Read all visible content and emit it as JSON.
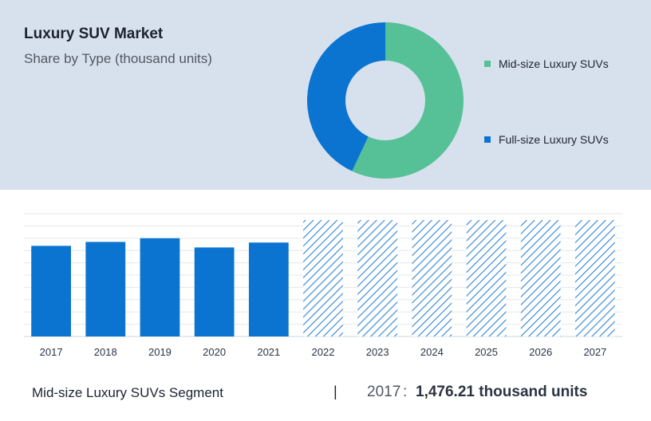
{
  "header": {
    "title": "Luxury SUV Market",
    "subtitle": "Share by Type (thousand units)"
  },
  "colors": {
    "mid_size": "#56c196",
    "full_size": "#0a74d0",
    "panel_bg": "#d7e1ed"
  },
  "chart_data": [
    {
      "type": "pie",
      "donut": true,
      "labels": [
        "Mid-size Luxury SUVs",
        "Full-size Luxury SUVs"
      ],
      "values": [
        57,
        43
      ],
      "legend_position": "right"
    },
    {
      "type": "bar",
      "categories": [
        "2017",
        "2018",
        "2019",
        "2020",
        "2021",
        "2022",
        "2023",
        "2024",
        "2025",
        "2026",
        "2027"
      ],
      "values": [
        1476.21,
        1540,
        1600,
        1450,
        1530,
        null,
        null,
        null,
        null,
        null,
        null
      ],
      "forecast_categories": [
        "2022",
        "2023",
        "2024",
        "2025",
        "2026",
        "2027"
      ],
      "ylim": [
        0,
        2000
      ],
      "grid": true
    }
  ],
  "footer": {
    "segment_label": "Mid-size Luxury SUVs Segment",
    "separator": "|",
    "year": "2017",
    "colon": ":",
    "value_text": "1,476.21 thousand units"
  }
}
